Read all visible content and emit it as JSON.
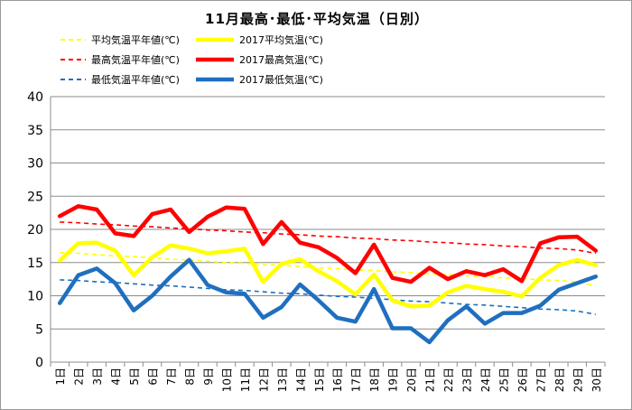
{
  "chart_data": {
    "type": "line",
    "title": "11月最高･最低･平均気温（日別）",
    "xlabel": "",
    "ylabel": "",
    "ylim": [
      0,
      40
    ],
    "yticks": [
      0,
      5,
      10,
      15,
      20,
      25,
      30,
      35,
      40
    ],
    "grid": "horizontal",
    "legend_position": "top-left, two columns",
    "categories": [
      "1日",
      "2日",
      "3日",
      "4日",
      "5日",
      "6日",
      "7日",
      "8日",
      "9日",
      "10日",
      "11日",
      "12日",
      "13日",
      "14日",
      "15日",
      "16日",
      "17日",
      "18日",
      "19日",
      "20日",
      "21日",
      "22日",
      "23日",
      "24日",
      "25日",
      "26日",
      "27日",
      "28日",
      "29日",
      "30日"
    ],
    "series": [
      {
        "name": "平均気温平年値(℃)",
        "color": "#ffff00",
        "style": "dashed",
        "values": [
          16.5,
          16.4,
          16.2,
          16.0,
          15.9,
          15.7,
          15.5,
          15.4,
          15.2,
          15.0,
          14.9,
          14.7,
          14.6,
          14.4,
          14.2,
          14.1,
          13.9,
          13.8,
          13.6,
          13.5,
          13.3,
          13.2,
          13.0,
          12.9,
          12.7,
          12.6,
          12.4,
          12.3,
          12.1,
          11.5
        ]
      },
      {
        "name": "2017平均気温(℃)",
        "color": "#ffff00",
        "style": "solid",
        "values": [
          15.3,
          17.9,
          18.0,
          16.8,
          13.1,
          15.8,
          17.6,
          17.1,
          16.4,
          16.7,
          17.1,
          12.1,
          14.8,
          15.5,
          13.7,
          12.2,
          10.2,
          13.2,
          9.3,
          8.4,
          8.5,
          10.5,
          11.5,
          11.0,
          10.6,
          9.9,
          12.7,
          14.6,
          15.4,
          14.6
        ]
      },
      {
        "name": "最高気温平年値(℃)",
        "color": "#ff0000",
        "style": "dashed",
        "values": [
          21.1,
          21.0,
          20.8,
          20.7,
          20.5,
          20.4,
          20.2,
          20.1,
          19.9,
          19.8,
          19.6,
          19.5,
          19.3,
          19.2,
          19.0,
          18.9,
          18.7,
          18.6,
          18.4,
          18.3,
          18.1,
          18.0,
          17.8,
          17.7,
          17.5,
          17.4,
          17.2,
          17.1,
          16.9,
          16.4
        ]
      },
      {
        "name": "2017最高気温(℃)",
        "color": "#ff0000",
        "style": "solid",
        "values": [
          22.0,
          23.5,
          23.0,
          19.4,
          19.0,
          22.3,
          23.0,
          19.6,
          21.9,
          23.3,
          23.1,
          17.8,
          21.1,
          18.0,
          17.3,
          15.7,
          13.4,
          17.7,
          12.7,
          12.1,
          14.2,
          12.5,
          13.7,
          13.1,
          14.0,
          12.2,
          17.9,
          18.8,
          18.9,
          16.8
        ]
      },
      {
        "name": "最低気温平年値(℃)",
        "color": "#1f6fbf",
        "style": "dashed",
        "values": [
          12.4,
          12.3,
          12.1,
          12.0,
          11.8,
          11.6,
          11.5,
          11.3,
          11.1,
          10.9,
          10.8,
          10.6,
          10.4,
          10.3,
          10.1,
          9.9,
          9.8,
          9.6,
          9.4,
          9.2,
          9.1,
          8.9,
          8.7,
          8.6,
          8.4,
          8.2,
          8.0,
          7.9,
          7.7,
          7.2
        ]
      },
      {
        "name": "2017最低気温(℃)",
        "color": "#1f6fbf",
        "style": "solid",
        "values": [
          8.9,
          13.1,
          14.1,
          11.9,
          7.8,
          10.0,
          12.9,
          15.4,
          11.6,
          10.5,
          10.3,
          6.7,
          8.3,
          11.7,
          9.3,
          6.7,
          6.1,
          11.0,
          5.1,
          5.1,
          3.0,
          6.3,
          8.4,
          5.8,
          7.4,
          7.4,
          8.5,
          10.9,
          11.9,
          12.9
        ]
      }
    ]
  }
}
